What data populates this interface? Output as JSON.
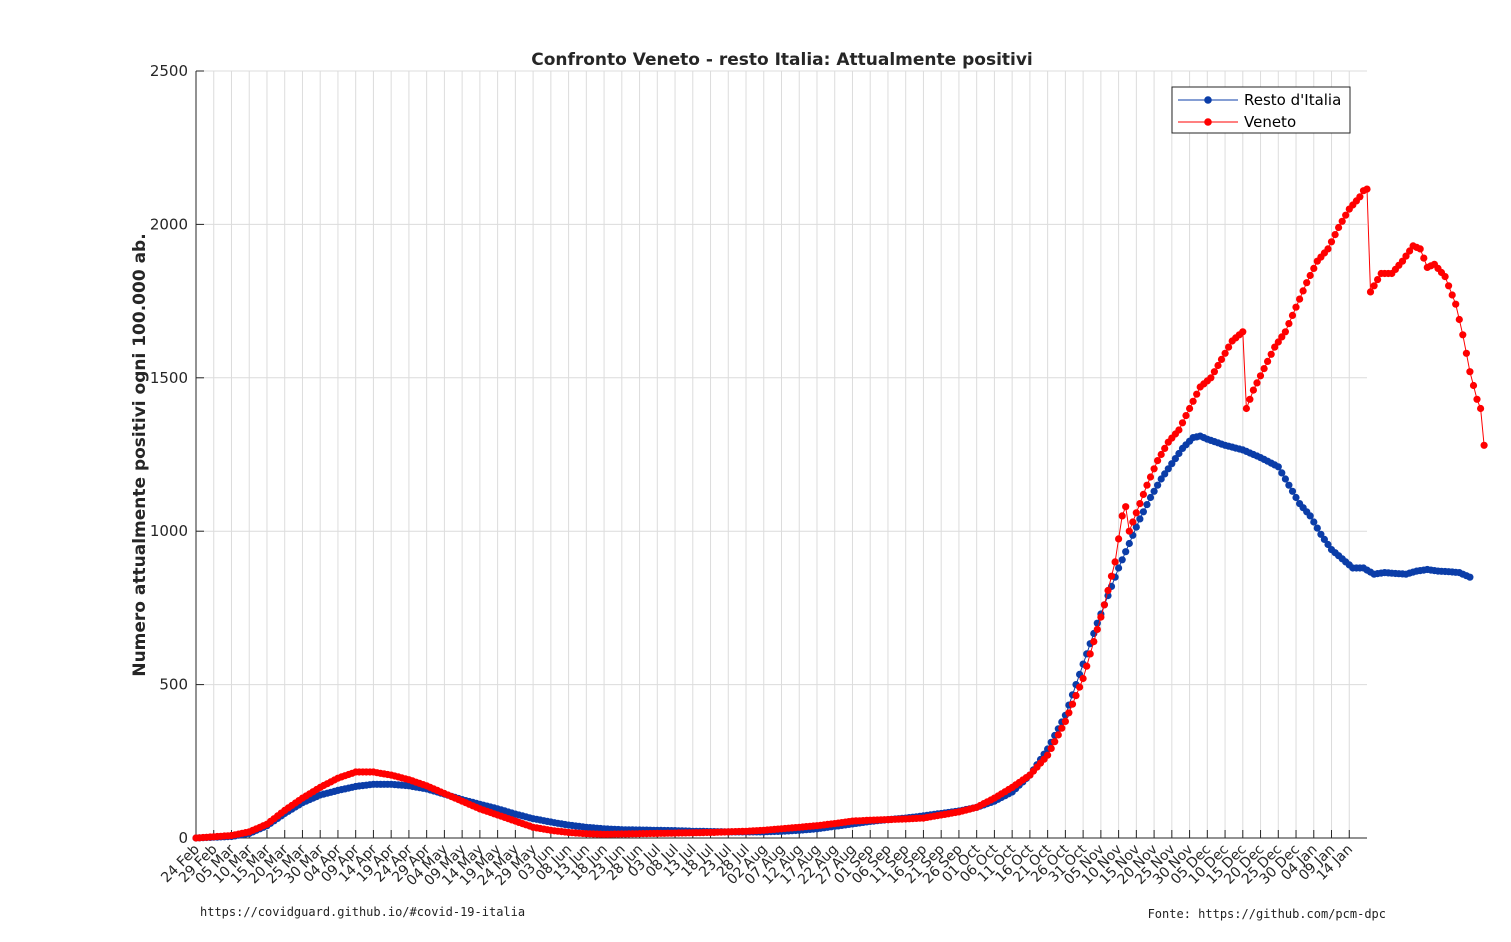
{
  "footer": {
    "left": "https://covidguard.github.io/#covid-19-italia",
    "right": "Fonte: https://github.com/pcm-dpc"
  },
  "chart_data": {
    "type": "line",
    "title": "Confronto Veneto - resto Italia: Attualmente positivi",
    "xlabel": "",
    "ylabel": "Numero attualmente positivi ogni 100.000 ab.",
    "ylim": [
      0,
      2500
    ],
    "yticks": [
      0,
      500,
      1000,
      1500,
      2000,
      2500
    ],
    "x_start": "24 Feb",
    "x_days": 330,
    "x_tick_labels": [
      "24 Feb",
      "29 Feb",
      "05 Mar",
      "10 Mar",
      "15 Mar",
      "20 Mar",
      "25 Mar",
      "30 Mar",
      "04 Apr",
      "09 Apr",
      "14 Apr",
      "19 Apr",
      "24 Apr",
      "29 Apr",
      "04 May",
      "09 May",
      "14 May",
      "19 May",
      "24 May",
      "29 May",
      "03 Jun",
      "08 Jun",
      "13 Jun",
      "18 Jun",
      "23 Jun",
      "28 Jun",
      "03 Jul",
      "08 Jul",
      "13 Jul",
      "18 Jul",
      "23 Jul",
      "28 Jul",
      "02 Aug",
      "07 Aug",
      "12 Aug",
      "17 Aug",
      "22 Aug",
      "27 Aug",
      "01 Sep",
      "06 Sep",
      "11 Sep",
      "16 Sep",
      "21 Sep",
      "26 Sep",
      "01 Oct",
      "06 Oct",
      "11 Oct",
      "16 Oct",
      "21 Oct",
      "26 Oct",
      "31 Oct",
      "05 Nov",
      "10 Nov",
      "15 Nov",
      "20 Nov",
      "25 Nov",
      "30 Nov",
      "05 Dec",
      "10 Dec",
      "15 Dec",
      "20 Dec",
      "25 Dec",
      "30 Dec",
      "04 Jan",
      "09 Jan",
      "14 Jan"
    ],
    "grid": true,
    "legend_position": "top-right",
    "series": [
      {
        "name": "Resto d'Italia",
        "color": "#0b3da8",
        "anchors": [
          [
            0,
            0
          ],
          [
            10,
            5
          ],
          [
            15,
            15
          ],
          [
            20,
            40
          ],
          [
            25,
            80
          ],
          [
            30,
            115
          ],
          [
            35,
            140
          ],
          [
            40,
            155
          ],
          [
            45,
            168
          ],
          [
            50,
            175
          ],
          [
            55,
            175
          ],
          [
            60,
            170
          ],
          [
            65,
            160
          ],
          [
            70,
            143
          ],
          [
            75,
            125
          ],
          [
            80,
            110
          ],
          [
            85,
            95
          ],
          [
            90,
            78
          ],
          [
            95,
            63
          ],
          [
            100,
            52
          ],
          [
            105,
            42
          ],
          [
            110,
            35
          ],
          [
            115,
            30
          ],
          [
            120,
            27
          ],
          [
            125,
            26
          ],
          [
            130,
            25
          ],
          [
            135,
            24
          ],
          [
            140,
            22
          ],
          [
            145,
            21
          ],
          [
            150,
            20
          ],
          [
            155,
            20
          ],
          [
            160,
            20
          ],
          [
            165,
            22
          ],
          [
            170,
            25
          ],
          [
            175,
            30
          ],
          [
            180,
            38
          ],
          [
            185,
            46
          ],
          [
            190,
            54
          ],
          [
            195,
            60
          ],
          [
            200,
            65
          ],
          [
            205,
            72
          ],
          [
            210,
            80
          ],
          [
            215,
            88
          ],
          [
            220,
            100
          ],
          [
            225,
            120
          ],
          [
            230,
            150
          ],
          [
            235,
            205
          ],
          [
            240,
            290
          ],
          [
            245,
            400
          ],
          [
            248,
            500
          ],
          [
            251,
            600
          ],
          [
            254,
            700
          ],
          [
            257,
            790
          ],
          [
            260,
            880
          ],
          [
            263,
            960
          ],
          [
            266,
            1040
          ],
          [
            269,
            1110
          ],
          [
            272,
            1170
          ],
          [
            275,
            1220
          ],
          [
            278,
            1270
          ],
          [
            281,
            1305
          ],
          [
            283,
            1310
          ],
          [
            285,
            1300
          ],
          [
            290,
            1280
          ],
          [
            295,
            1265
          ],
          [
            300,
            1240
          ],
          [
            305,
            1210
          ],
          [
            308,
            1150
          ],
          [
            311,
            1090
          ],
          [
            314,
            1050
          ],
          [
            317,
            990
          ],
          [
            320,
            940
          ],
          [
            323,
            910
          ],
          [
            326,
            880
          ],
          [
            329,
            880
          ],
          [
            332,
            860
          ],
          [
            335,
            865
          ],
          [
            338,
            862
          ],
          [
            341,
            860
          ],
          [
            344,
            870
          ],
          [
            347,
            875
          ],
          [
            350,
            870
          ],
          [
            353,
            868
          ],
          [
            356,
            865
          ],
          [
            359,
            850
          ]
        ]
      },
      {
        "name": "Veneto",
        "color": "#ff0000",
        "anchors": [
          [
            0,
            0
          ],
          [
            10,
            8
          ],
          [
            15,
            20
          ],
          [
            20,
            45
          ],
          [
            25,
            90
          ],
          [
            30,
            130
          ],
          [
            35,
            165
          ],
          [
            40,
            195
          ],
          [
            45,
            215
          ],
          [
            50,
            215
          ],
          [
            55,
            205
          ],
          [
            60,
            190
          ],
          [
            65,
            170
          ],
          [
            70,
            145
          ],
          [
            75,
            120
          ],
          [
            80,
            95
          ],
          [
            85,
            75
          ],
          [
            90,
            55
          ],
          [
            95,
            35
          ],
          [
            100,
            25
          ],
          [
            105,
            18
          ],
          [
            110,
            14
          ],
          [
            115,
            12
          ],
          [
            120,
            13
          ],
          [
            125,
            14
          ],
          [
            130,
            15
          ],
          [
            135,
            16
          ],
          [
            140,
            17
          ],
          [
            145,
            18
          ],
          [
            150,
            20
          ],
          [
            155,
            22
          ],
          [
            160,
            25
          ],
          [
            165,
            30
          ],
          [
            170,
            35
          ],
          [
            175,
            40
          ],
          [
            180,
            47
          ],
          [
            185,
            55
          ],
          [
            190,
            58
          ],
          [
            195,
            60
          ],
          [
            200,
            62
          ],
          [
            205,
            65
          ],
          [
            210,
            75
          ],
          [
            215,
            85
          ],
          [
            220,
            100
          ],
          [
            225,
            130
          ],
          [
            230,
            165
          ],
          [
            235,
            205
          ],
          [
            240,
            270
          ],
          [
            245,
            380
          ],
          [
            250,
            520
          ],
          [
            253,
            640
          ],
          [
            256,
            760
          ],
          [
            259,
            900
          ],
          [
            261,
            1050
          ],
          [
            262,
            1080
          ],
          [
            263,
            1000
          ],
          [
            265,
            1060
          ],
          [
            268,
            1150
          ],
          [
            271,
            1230
          ],
          [
            274,
            1290
          ],
          [
            277,
            1330
          ],
          [
            280,
            1400
          ],
          [
            283,
            1470
          ],
          [
            286,
            1500
          ],
          [
            289,
            1560
          ],
          [
            292,
            1620
          ],
          [
            295,
            1650
          ],
          [
            296,
            1400
          ],
          [
            298,
            1460
          ],
          [
            301,
            1530
          ],
          [
            304,
            1600
          ],
          [
            307,
            1650
          ],
          [
            310,
            1730
          ],
          [
            313,
            1810
          ],
          [
            316,
            1880
          ],
          [
            319,
            1920
          ],
          [
            322,
            1990
          ],
          [
            325,
            2050
          ],
          [
            328,
            2090
          ],
          [
            329,
            2110
          ],
          [
            330,
            2115
          ],
          [
            331,
            1780
          ],
          [
            334,
            1840
          ],
          [
            337,
            1840
          ],
          [
            340,
            1880
          ],
          [
            343,
            1930
          ],
          [
            345,
            1920
          ],
          [
            347,
            1860
          ],
          [
            349,
            1870
          ],
          [
            352,
            1830
          ],
          [
            355,
            1740
          ],
          [
            357,
            1640
          ],
          [
            359,
            1520
          ],
          [
            361,
            1430
          ],
          [
            362,
            1400
          ],
          [
            363,
            1280
          ]
        ]
      }
    ]
  }
}
